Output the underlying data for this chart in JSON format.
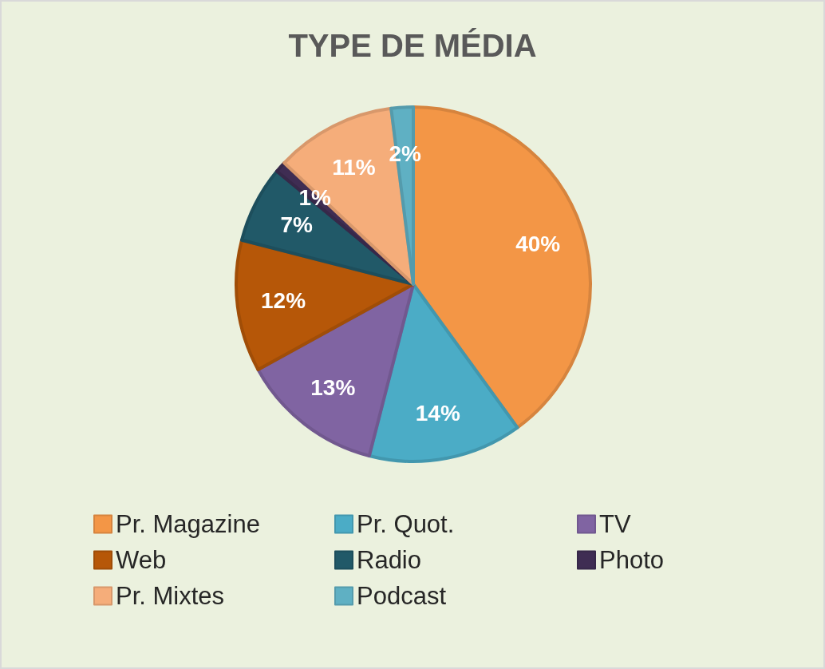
{
  "chart_data": {
    "type": "pie",
    "title": "TYPE DE MÉDIA",
    "categories": [
      "Pr. Magazine",
      "Pr. Quot.",
      "TV",
      "Web",
      "Radio",
      "Photo",
      "Pr. Mixtes",
      "Podcast"
    ],
    "values": [
      40,
      14,
      13,
      12,
      7,
      1,
      11,
      2
    ],
    "value_labels": [
      "40%",
      "14%",
      "13%",
      "12%",
      "7%",
      "1%",
      "11%",
      "2%"
    ],
    "colors": [
      "#f39646",
      "#4bacc6",
      "#8064a2",
      "#b65708",
      "#215968",
      "#3f2d53",
      "#f5ad7a",
      "#5fb0c3"
    ],
    "legend": "bottom"
  }
}
